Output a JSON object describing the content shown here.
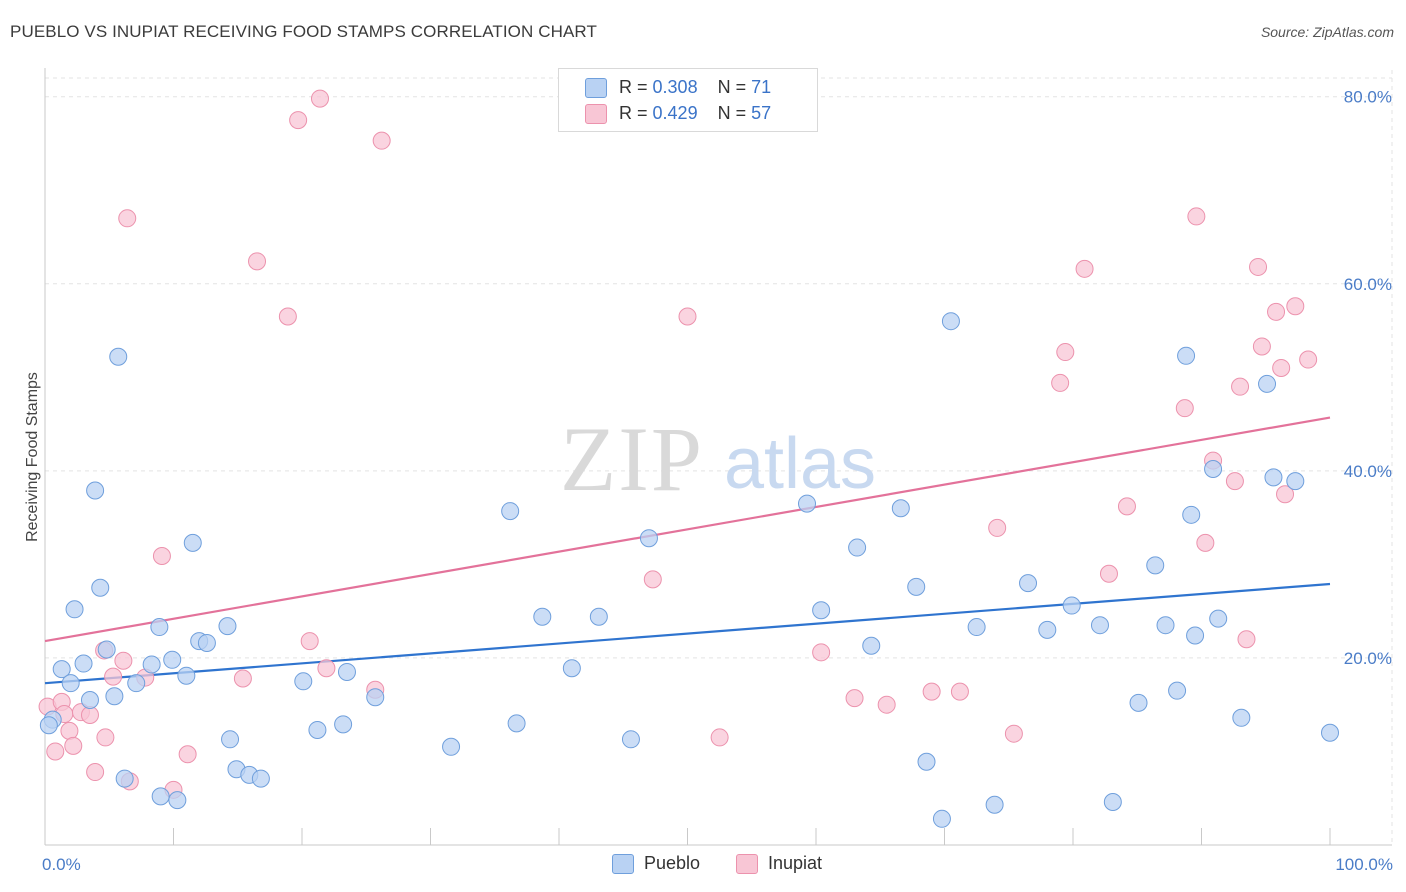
{
  "title": "PUEBLO VS INUPIAT RECEIVING FOOD STAMPS CORRELATION CHART",
  "source": "Source: ZipAtlas.com",
  "watermark": {
    "zip": "ZIP",
    "atlas": "atlas"
  },
  "legend": {
    "rows": [
      {
        "r_label": "R =",
        "r_value": "0.308",
        "n_label": "N =",
        "n_value": "71"
      },
      {
        "r_label": "R =",
        "r_value": "0.429",
        "n_label": "N =",
        "n_value": "57"
      }
    ]
  },
  "bottom_legend": {
    "pueblo": "Pueblo",
    "inupiat": "Inupiat"
  },
  "colors": {
    "pueblo_fill": "#b9d2f3",
    "pueblo_stroke": "#6f9fdc",
    "pueblo_line": "#2f74cf",
    "inupiat_fill": "#f8c6d5",
    "inupiat_stroke": "#ec92ad",
    "inupiat_line": "#e3729a",
    "accent_text": "#3a73c8"
  },
  "chart_data": {
    "type": "scatter",
    "title": "PUEBLO VS INUPIAT RECEIVING FOOD STAMPS CORRELATION CHART",
    "xlabel": "",
    "ylabel": "Receiving Food Stamps",
    "xlim": [
      0,
      100
    ],
    "ylim": [
      0,
      82
    ],
    "x_tick_labels": [
      "0.0%",
      "100.0%"
    ],
    "y_ticks": [
      20,
      40,
      60,
      80
    ],
    "y_tick_labels": [
      "20.0%",
      "40.0%",
      "60.0%",
      "80.0%"
    ],
    "grid": true,
    "series": [
      {
        "name": "Pueblo",
        "r": 0.308,
        "n": 71,
        "trend": {
          "x": [
            0,
            100
          ],
          "y": [
            17.3,
            27.9
          ]
        },
        "points": [
          [
            0.6,
            13.4
          ],
          [
            1.3,
            18.8
          ],
          [
            2.0,
            17.3
          ],
          [
            2.3,
            25.2
          ],
          [
            3.0,
            19.4
          ],
          [
            3.5,
            15.5
          ],
          [
            3.9,
            37.9
          ],
          [
            4.3,
            27.5
          ],
          [
            4.8,
            20.9
          ],
          [
            5.4,
            15.9
          ],
          [
            5.7,
            52.2
          ],
          [
            6.2,
            7.1
          ],
          [
            7.1,
            17.3
          ],
          [
            8.3,
            19.3
          ],
          [
            8.9,
            23.3
          ],
          [
            9.0,
            5.2
          ],
          [
            9.9,
            19.8
          ],
          [
            10.3,
            4.8
          ],
          [
            11.0,
            18.1
          ],
          [
            11.5,
            32.3
          ],
          [
            12.0,
            21.8
          ],
          [
            12.6,
            21.6
          ],
          [
            14.2,
            23.4
          ],
          [
            14.4,
            11.3
          ],
          [
            14.9,
            8.1
          ],
          [
            15.9,
            7.5
          ],
          [
            16.8,
            7.1
          ],
          [
            20.1,
            17.5
          ],
          [
            21.2,
            12.3
          ],
          [
            23.2,
            12.9
          ],
          [
            23.5,
            18.5
          ],
          [
            25.7,
            15.8
          ],
          [
            31.6,
            10.5
          ],
          [
            36.2,
            35.7
          ],
          [
            36.7,
            13.0
          ],
          [
            38.7,
            24.4
          ],
          [
            41.0,
            18.9
          ],
          [
            43.1,
            24.4
          ],
          [
            45.6,
            11.3
          ],
          [
            47.0,
            32.8
          ],
          [
            59.3,
            36.5
          ],
          [
            60.4,
            25.1
          ],
          [
            63.2,
            31.8
          ],
          [
            64.3,
            21.3
          ],
          [
            66.6,
            36.0
          ],
          [
            67.8,
            27.6
          ],
          [
            68.6,
            8.9
          ],
          [
            70.5,
            56.0
          ],
          [
            69.8,
            2.8
          ],
          [
            72.5,
            23.3
          ],
          [
            73.9,
            4.3
          ],
          [
            76.5,
            28.0
          ],
          [
            78.0,
            23.0
          ],
          [
            79.9,
            25.6
          ],
          [
            82.1,
            23.5
          ],
          [
            83.1,
            4.6
          ],
          [
            85.1,
            15.2
          ],
          [
            86.4,
            29.9
          ],
          [
            87.2,
            23.5
          ],
          [
            88.1,
            16.5
          ],
          [
            88.8,
            52.3
          ],
          [
            89.2,
            35.3
          ],
          [
            89.5,
            22.4
          ],
          [
            90.9,
            40.2
          ],
          [
            91.3,
            24.2
          ],
          [
            93.1,
            13.6
          ],
          [
            95.1,
            49.3
          ],
          [
            95.6,
            39.3
          ],
          [
            97.3,
            38.9
          ],
          [
            100.0,
            12.0
          ],
          [
            0.3,
            12.8
          ]
        ]
      },
      {
        "name": "Inupiat",
        "r": 0.429,
        "n": 57,
        "trend": {
          "x": [
            0,
            100
          ],
          "y": [
            21.8,
            45.7
          ]
        },
        "points": [
          [
            0.2,
            14.8
          ],
          [
            0.8,
            10.0
          ],
          [
            1.3,
            15.3
          ],
          [
            1.5,
            14.0
          ],
          [
            1.9,
            12.2
          ],
          [
            2.2,
            10.6
          ],
          [
            2.8,
            14.2
          ],
          [
            3.5,
            13.9
          ],
          [
            3.9,
            7.8
          ],
          [
            4.6,
            20.8
          ],
          [
            4.7,
            11.5
          ],
          [
            5.3,
            18.0
          ],
          [
            6.1,
            19.7
          ],
          [
            6.4,
            67.0
          ],
          [
            6.6,
            6.8
          ],
          [
            7.8,
            17.9
          ],
          [
            9.1,
            30.9
          ],
          [
            10.0,
            5.9
          ],
          [
            11.1,
            9.7
          ],
          [
            15.4,
            17.8
          ],
          [
            16.5,
            62.4
          ],
          [
            18.9,
            56.5
          ],
          [
            19.7,
            77.5
          ],
          [
            20.6,
            21.8
          ],
          [
            21.4,
            79.8
          ],
          [
            21.9,
            18.9
          ],
          [
            25.7,
            16.6
          ],
          [
            26.2,
            75.3
          ],
          [
            47.3,
            28.4
          ],
          [
            50.0,
            56.5
          ],
          [
            52.5,
            11.5
          ],
          [
            60.4,
            20.6
          ],
          [
            63.0,
            15.7
          ],
          [
            65.5,
            15.0
          ],
          [
            69.0,
            16.4
          ],
          [
            71.2,
            16.4
          ],
          [
            74.1,
            33.9
          ],
          [
            75.4,
            11.9
          ],
          [
            79.0,
            49.4
          ],
          [
            79.4,
            52.7
          ],
          [
            80.9,
            61.6
          ],
          [
            82.8,
            29.0
          ],
          [
            84.2,
            36.2
          ],
          [
            88.7,
            46.7
          ],
          [
            89.6,
            67.2
          ],
          [
            90.3,
            32.3
          ],
          [
            90.9,
            41.1
          ],
          [
            92.6,
            38.9
          ],
          [
            93.0,
            49.0
          ],
          [
            93.5,
            22.0
          ],
          [
            94.4,
            61.8
          ],
          [
            94.7,
            53.3
          ],
          [
            95.8,
            57.0
          ],
          [
            96.2,
            51.0
          ],
          [
            96.5,
            37.5
          ],
          [
            97.3,
            57.6
          ],
          [
            98.3,
            51.9
          ]
        ]
      }
    ]
  }
}
